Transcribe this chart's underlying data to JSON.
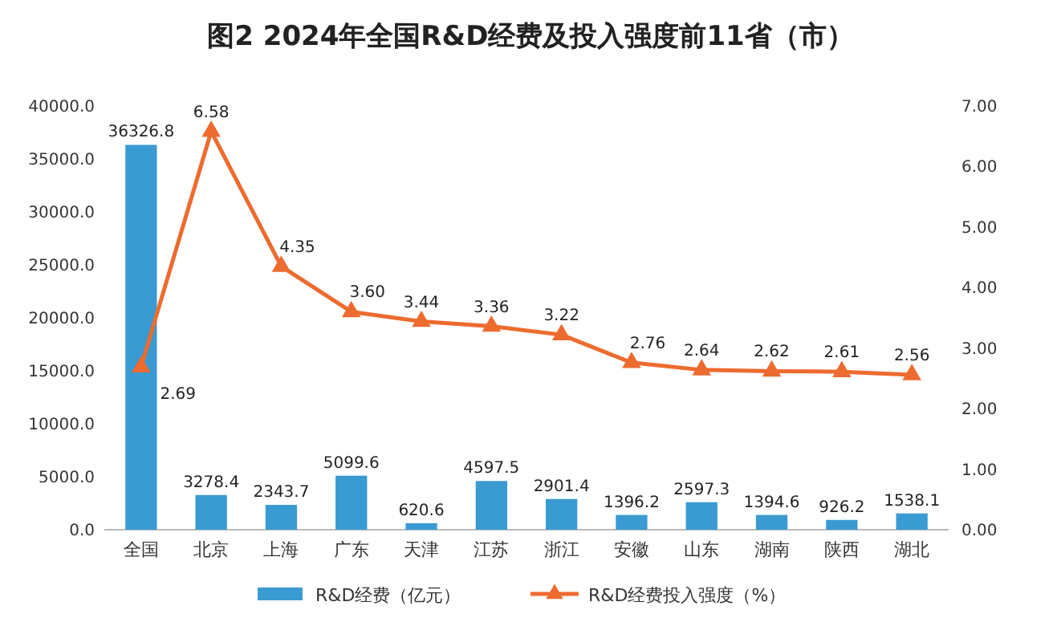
{
  "chart_data": {
    "type": "bar",
    "title": "图2  2024年全国R&D经费及投入强度前11省（市）",
    "categories": [
      "全国",
      "北京",
      "上海",
      "广东",
      "天津",
      "江苏",
      "浙江",
      "安徽",
      "山东",
      "湖南",
      "陕西",
      "湖北"
    ],
    "series": [
      {
        "name": "R&D经费（亿元）",
        "color": "#3a9ad2",
        "values": [
          36326.8,
          3278.4,
          2343.7,
          5099.6,
          620.6,
          4597.5,
          2901.4,
          1396.2,
          2597.3,
          1394.6,
          926.2,
          1538.1
        ],
        "value_labels": [
          "36326.8",
          "3278.4",
          "2343.7",
          "5099.6",
          "620.6",
          "4597.5",
          "2901.4",
          "1396.2",
          "2597.3",
          "1394.6",
          "926.2",
          "1538.1"
        ]
      },
      {
        "name": "R&D经费投入强度（%）",
        "type": "line",
        "axis": "y2",
        "color": "#ed6b2f",
        "marker": "triangle",
        "values": [
          2.69,
          6.58,
          4.35,
          3.6,
          3.44,
          3.36,
          3.22,
          2.76,
          2.64,
          2.62,
          2.61,
          2.56
        ],
        "value_labels": [
          "2.69",
          "6.58",
          "4.35",
          "3.60",
          "3.44",
          "3.36",
          "3.22",
          "2.76",
          "2.64",
          "2.62",
          "2.61",
          "2.56"
        ]
      }
    ],
    "ylim": [
      0,
      40000
    ],
    "yticks": [
      {
        "value": 0,
        "label": "0.0"
      },
      {
        "value": 5000,
        "label": "5000.0"
      },
      {
        "value": 10000,
        "label": "10000.0"
      },
      {
        "value": 15000,
        "label": "15000.0"
      },
      {
        "value": 20000,
        "label": "20000.0"
      },
      {
        "value": 25000,
        "label": "25000.0"
      },
      {
        "value": 30000,
        "label": "30000.0"
      },
      {
        "value": 35000,
        "label": "35000.0"
      },
      {
        "value": 40000,
        "label": "40000.0"
      }
    ],
    "y2lim": [
      0,
      7
    ],
    "y2ticks": [
      {
        "value": 0,
        "label": "0.00"
      },
      {
        "value": 1,
        "label": "1.00"
      },
      {
        "value": 2,
        "label": "2.00"
      },
      {
        "value": 3,
        "label": "3.00"
      },
      {
        "value": 4,
        "label": "4.00"
      },
      {
        "value": 5,
        "label": "5.00"
      },
      {
        "value": 6,
        "label": "6.00"
      },
      {
        "value": 7,
        "label": "7.00"
      }
    ],
    "legend": "bottom",
    "grid": false
  }
}
